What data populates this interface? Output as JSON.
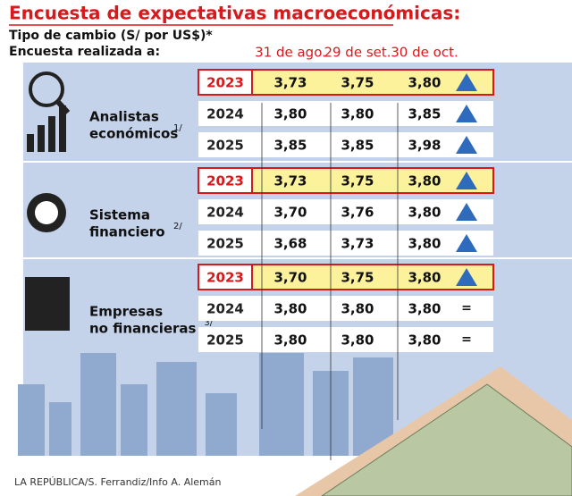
{
  "header": {
    "title": "Encuesta de expectativas macroeconómicas:",
    "subtitle": "Tipo de cambio (S/ por US$)*",
    "subtitle2": "Encuesta realizada a:"
  },
  "columns": [
    "31 de ago.",
    "29 de set.",
    "30 de oct."
  ],
  "groups": [
    {
      "label": [
        "Analistas",
        "económicos"
      ],
      "note": "1/",
      "rows": [
        {
          "year": "2023",
          "values": [
            "3,73",
            "3,75",
            "3,80"
          ]
        },
        {
          "year": "2024",
          "values": [
            "3,80",
            "3,80",
            "3,85"
          ]
        },
        {
          "year": "2025",
          "values": [
            "3,85",
            "3,85",
            "3,98"
          ]
        }
      ]
    },
    {
      "label": [
        "Sistema",
        "financiero"
      ],
      "note": "2/",
      "rows": [
        {
          "year": "2023",
          "values": [
            "3,73",
            "3,75",
            "3,80"
          ]
        },
        {
          "year": "2024",
          "values": [
            "3,70",
            "3,76",
            "3,80"
          ]
        },
        {
          "year": "2025",
          "values": [
            "3,68",
            "3,73",
            "3,80"
          ]
        }
      ]
    },
    {
      "label": [
        "Empresas",
        "no financieras"
      ],
      "note": "3/",
      "rows": [
        {
          "year": "2023",
          "values": [
            "3,70",
            "3,75",
            "3,80"
          ]
        },
        {
          "year": "2024",
          "values": [
            "3,80",
            "3,80",
            "3,80"
          ],
          "trend": "="
        },
        {
          "year": "2025",
          "values": [
            "3,80",
            "3,80",
            "3,80"
          ],
          "trend": "="
        }
      ]
    }
  ],
  "credit": "LA REPÚBLICA/S. Ferrandiz/Info A. Alemán"
}
